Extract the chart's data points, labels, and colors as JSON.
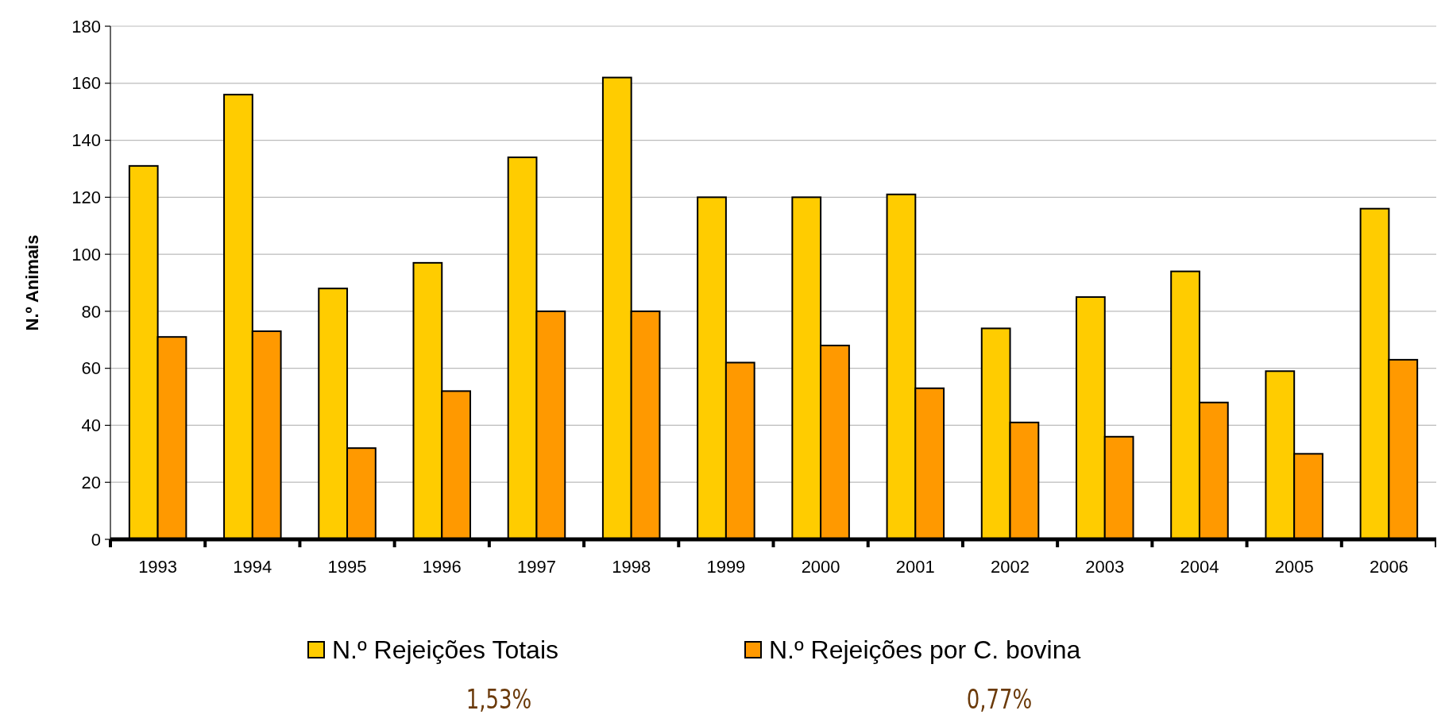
{
  "chart_data": {
    "type": "bar",
    "ylabel": "N.º Animais",
    "categories": [
      "1993",
      "1994",
      "1995",
      "1996",
      "1997",
      "1998",
      "1999",
      "2000",
      "2001",
      "2002",
      "2003",
      "2004",
      "2005",
      "2006"
    ],
    "series": [
      {
        "name": "N.º  Rejeições Totais",
        "color": "#ffcc00",
        "values": [
          131,
          156,
          88,
          97,
          134,
          162,
          120,
          120,
          121,
          74,
          85,
          94,
          59,
          116
        ]
      },
      {
        "name": "N.º Rejeições por C. bovina",
        "color": "#ff9900",
        "values": [
          71,
          73,
          32,
          52,
          80,
          80,
          62,
          68,
          53,
          41,
          36,
          48,
          30,
          63
        ]
      }
    ],
    "ylim": [
      0,
      180
    ],
    "yticks": [
      0,
      20,
      40,
      60,
      80,
      100,
      120,
      140,
      160,
      180
    ],
    "grid": "y",
    "legend": "bottom",
    "annotations": [
      "1,53%",
      "0,77%"
    ]
  }
}
